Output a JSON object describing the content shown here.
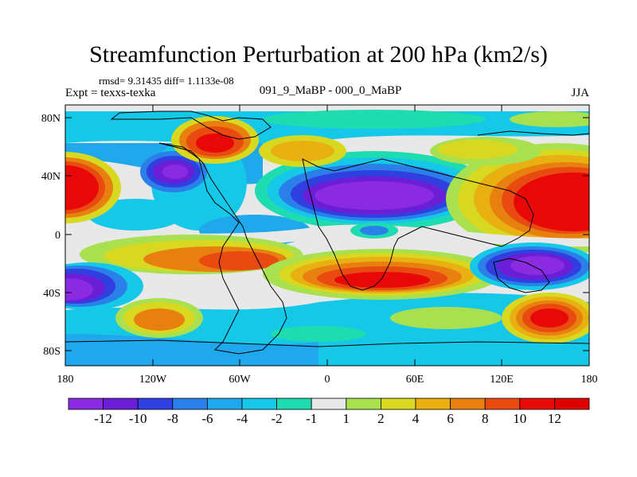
{
  "title": "Streamfunction Perturbation at 200 hPa (km2/s)",
  "stats": "rmsd= 9.31435  diff= 1.1133e-08",
  "experiment": "Expt = texxs-texka",
  "comparison": "091_9_MaBP - 000_0_MaBP",
  "season": "JJA",
  "lat_labels": [
    "80N",
    "40N",
    "0",
    "40S",
    "80S"
  ],
  "lon_labels": [
    "180",
    "120W",
    "60W",
    "0",
    "60E",
    "120E",
    "180"
  ],
  "colorbar": {
    "labels": [
      "-12",
      "-10",
      "-8",
      "-6",
      "-4",
      "-2",
      "-1",
      "1",
      "2",
      "4",
      "6",
      "8",
      "10",
      "12"
    ],
    "colors": [
      "#8a2be2",
      "#6a1fd6",
      "#2f3fe0",
      "#2a7fe8",
      "#1fa8ec",
      "#16c8e8",
      "#1fdcb0",
      "#e8e8e8",
      "#a8e050",
      "#d8d820",
      "#e8b010",
      "#e88010",
      "#e84a10",
      "#e80808",
      "#e00000"
    ]
  }
}
